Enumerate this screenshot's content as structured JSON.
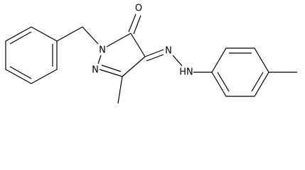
{
  "atoms": [
    {
      "label": "O"
    },
    {
      "label": "N"
    },
    {
      "label": "N"
    },
    {
      "label": "N"
    },
    {
      "label": "HN"
    }
  ]
}
